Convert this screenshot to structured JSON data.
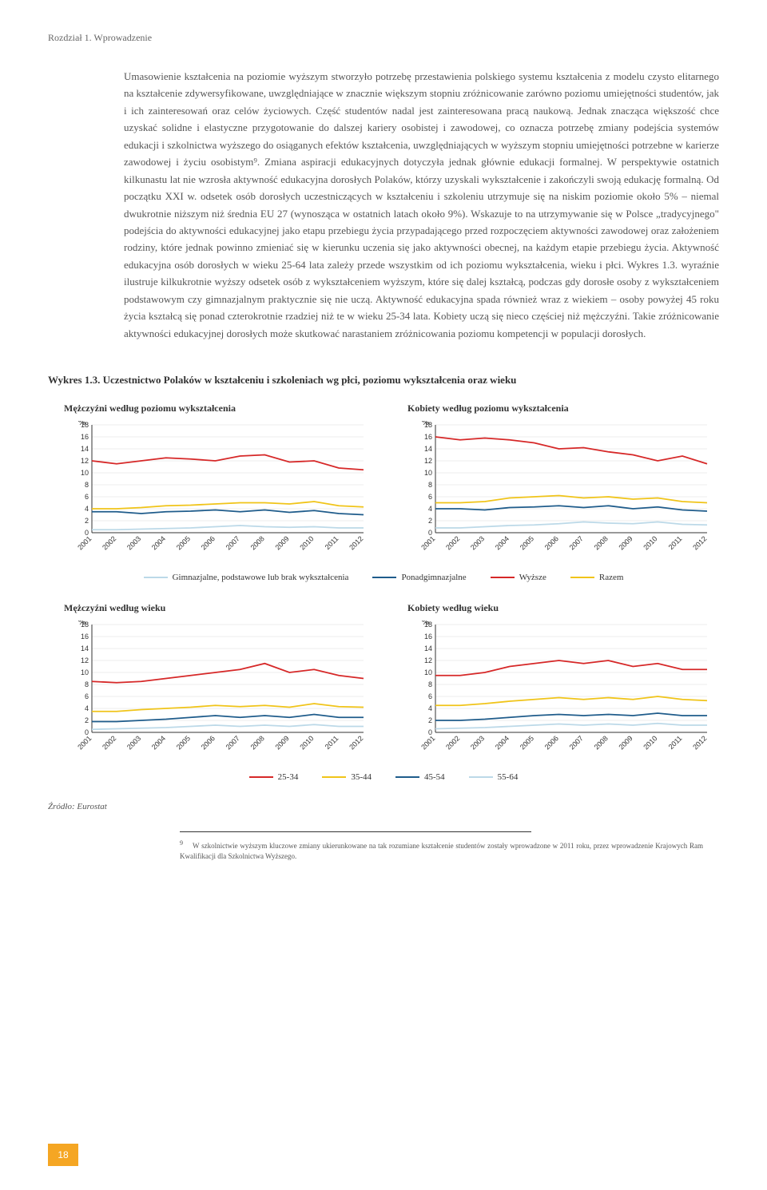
{
  "header": {
    "chapter": "Rozdział 1. Wprowadzenie"
  },
  "body": {
    "text": "Umasowienie kształcenia na poziomie wyższym stworzyło potrzebę przestawienia polskiego systemu kształcenia z modelu czysto elitarnego na kształcenie zdywersyfikowane, uwzględniające w znacznie większym stopniu zróżnicowanie zarówno poziomu umiejętności studentów, jak i ich zainteresowań oraz celów życiowych. Część studentów nadal jest zainteresowana pracą naukową. Jednak znacząca większość chce uzyskać solidne i elastyczne przygotowanie do dalszej kariery osobistej i zawodowej, co oznacza potrzebę zmiany podejścia systemów edukacji i szkolnictwa wyższego do osiąganych efektów kształcenia, uwzględniających w wyższym stopniu umiejętności potrzebne w karierze zawodowej i życiu osobistym⁹.\nZmiana aspiracji edukacyjnych dotyczyła jednak głównie edukacji formalnej. W perspektywie ostatnich kilkunastu lat nie wzrosła aktywność edukacyjna dorosłych Polaków, którzy uzyskali wykształcenie i zakończyli swoją edukację formalną. Od początku XXI w. odsetek osób dorosłych uczestniczących w kształceniu i szkoleniu utrzymuje się na niskim poziomie około 5% – niemal dwukrotnie niższym niż średnia EU 27 (wynosząca w ostatnich latach około 9%). Wskazuje to na utrzymywanie się w Polsce „tradycyjnego\" podejścia do aktywności edukacyjnej jako etapu przebiegu życia przypadającego przed rozpoczęciem aktywności zawodowej oraz założeniem rodziny, które jednak powinno zmieniać się w kierunku uczenia się jako aktywności obecnej, na każdym etapie przebiegu życia. Aktywność edukacyjna osób dorosłych w wieku 25-64 lata zależy przede wszystkim od ich poziomu wykształcenia, wieku i płci. Wykres 1.3. wyraźnie ilustruje kilkukrotnie wyższy odsetek osób z wykształceniem wyższym, które się dalej kształcą, podczas gdy dorosłe osoby z wykształceniem podstawowym czy gimnazjalnym praktycznie się nie uczą. Aktywność edukacyjna spada również wraz z wiekiem – osoby powyżej 45 roku życia kształcą się ponad czterokrotnie rzadziej niż te w wieku 25-34 lata. Kobiety uczą się nieco częściej niż mężczyźni. Takie zróżnicowanie aktywności edukacyjnej dorosłych może skutkować narastaniem zróżnicowania poziomu kompetencji w populacji dorosłych."
  },
  "figure": {
    "title": "Wykres 1.3. Uczestnictwo Polaków w kształceniu i szkoleniach wg płci, poziomu wykształcenia oraz wieku",
    "years": [
      "2001",
      "2002",
      "2003",
      "2004",
      "2005",
      "2006",
      "2007",
      "2008",
      "2009",
      "2010",
      "2011",
      "2012"
    ],
    "ylabel": "%",
    "ylim": [
      0,
      18
    ],
    "yticks": [
      0,
      2,
      4,
      6,
      8,
      10,
      12,
      14,
      16,
      18
    ],
    "background": "#ffffff",
    "grid_color": "#dddddd",
    "charts_edu": [
      {
        "title": "Mężczyźni według poziomu wykształcenia",
        "series": {
          "gimnazjalne": [
            0.5,
            0.5,
            0.6,
            0.7,
            0.8,
            1.0,
            1.2,
            1.0,
            0.9,
            1.0,
            0.8,
            0.8
          ],
          "ponadgim": [
            3.5,
            3.5,
            3.2,
            3.5,
            3.6,
            3.8,
            3.5,
            3.8,
            3.4,
            3.7,
            3.2,
            3.0
          ],
          "wyzsze": [
            12.0,
            11.5,
            12.0,
            12.5,
            12.3,
            12.0,
            12.8,
            13.0,
            11.8,
            12.0,
            10.8,
            10.5
          ],
          "razem": [
            4.0,
            4.0,
            4.2,
            4.5,
            4.6,
            4.8,
            5.0,
            5.0,
            4.8,
            5.2,
            4.5,
            4.3
          ]
        }
      },
      {
        "title": "Kobiety według poziomu wykształcenia",
        "series": {
          "gimnazjalne": [
            0.8,
            0.8,
            1.0,
            1.2,
            1.3,
            1.5,
            1.8,
            1.6,
            1.5,
            1.8,
            1.4,
            1.3
          ],
          "ponadgim": [
            4.0,
            4.0,
            3.8,
            4.2,
            4.3,
            4.5,
            4.2,
            4.5,
            4.0,
            4.3,
            3.8,
            3.6
          ],
          "wyzsze": [
            16.0,
            15.5,
            15.8,
            15.5,
            15.0,
            14.0,
            14.2,
            13.5,
            13.0,
            12.0,
            12.8,
            11.5
          ],
          "razem": [
            5.0,
            5.0,
            5.2,
            5.8,
            6.0,
            6.2,
            5.8,
            6.0,
            5.6,
            5.8,
            5.2,
            5.0
          ]
        }
      }
    ],
    "charts_age": [
      {
        "title": "Mężczyźni według wieku",
        "series": {
          "25-34": [
            8.5,
            8.3,
            8.5,
            9.0,
            9.5,
            10.0,
            10.5,
            11.5,
            10.0,
            10.5,
            9.5,
            9.0
          ],
          "35-44": [
            3.5,
            3.5,
            3.8,
            4.0,
            4.2,
            4.5,
            4.3,
            4.5,
            4.2,
            4.8,
            4.3,
            4.2
          ],
          "45-54": [
            1.8,
            1.8,
            2.0,
            2.2,
            2.5,
            2.8,
            2.5,
            2.8,
            2.5,
            3.0,
            2.5,
            2.5
          ],
          "55-64": [
            0.5,
            0.6,
            0.7,
            0.8,
            1.0,
            1.2,
            1.0,
            1.2,
            1.0,
            1.3,
            1.0,
            1.0
          ]
        }
      },
      {
        "title": "Kobiety według wieku",
        "series": {
          "25-34": [
            9.5,
            9.5,
            10.0,
            11.0,
            11.5,
            12.0,
            11.5,
            12.0,
            11.0,
            11.5,
            10.5,
            10.5
          ],
          "35-44": [
            4.5,
            4.5,
            4.8,
            5.2,
            5.5,
            5.8,
            5.5,
            5.8,
            5.5,
            6.0,
            5.5,
            5.3
          ],
          "45-54": [
            2.0,
            2.0,
            2.2,
            2.5,
            2.8,
            3.0,
            2.8,
            3.0,
            2.8,
            3.2,
            2.8,
            2.8
          ],
          "55-64": [
            0.6,
            0.7,
            0.8,
            1.0,
            1.2,
            1.4,
            1.2,
            1.4,
            1.2,
            1.5,
            1.2,
            1.2
          ]
        }
      }
    ],
    "colors": {
      "gimnazjalne": "#bcd9e8",
      "ponadgim": "#1f5c8b",
      "wyzsze": "#d62828",
      "razem": "#f0c419",
      "25-34": "#d62828",
      "35-44": "#f0c419",
      "45-54": "#1f5c8b",
      "55-64": "#bcd9e8"
    },
    "legend_edu": [
      {
        "label": "Gimnazjalne, podstawowe lub brak wykształcenia",
        "key": "gimnazjalne"
      },
      {
        "label": "Ponadgimnazjalne",
        "key": "ponadgim"
      },
      {
        "label": "Wyższe",
        "key": "wyzsze"
      },
      {
        "label": "Razem",
        "key": "razem"
      }
    ],
    "legend_age": [
      {
        "label": "25-34",
        "key": "25-34"
      },
      {
        "label": "35-44",
        "key": "35-44"
      },
      {
        "label": "45-54",
        "key": "45-54"
      },
      {
        "label": "55-64",
        "key": "55-64"
      }
    ]
  },
  "source": "Źródło: Eurostat",
  "footnote": {
    "num": "9",
    "text": "W szkolnictwie wyższym kluczowe zmiany ukierunkowane na tak rozumiane kształcenie studentów zostały wprowadzone w 2011 roku, przez wprowadzenie Krajowych Ram Kwalifikacji dla Szkolnictwa Wyższego."
  },
  "page_number": "18"
}
